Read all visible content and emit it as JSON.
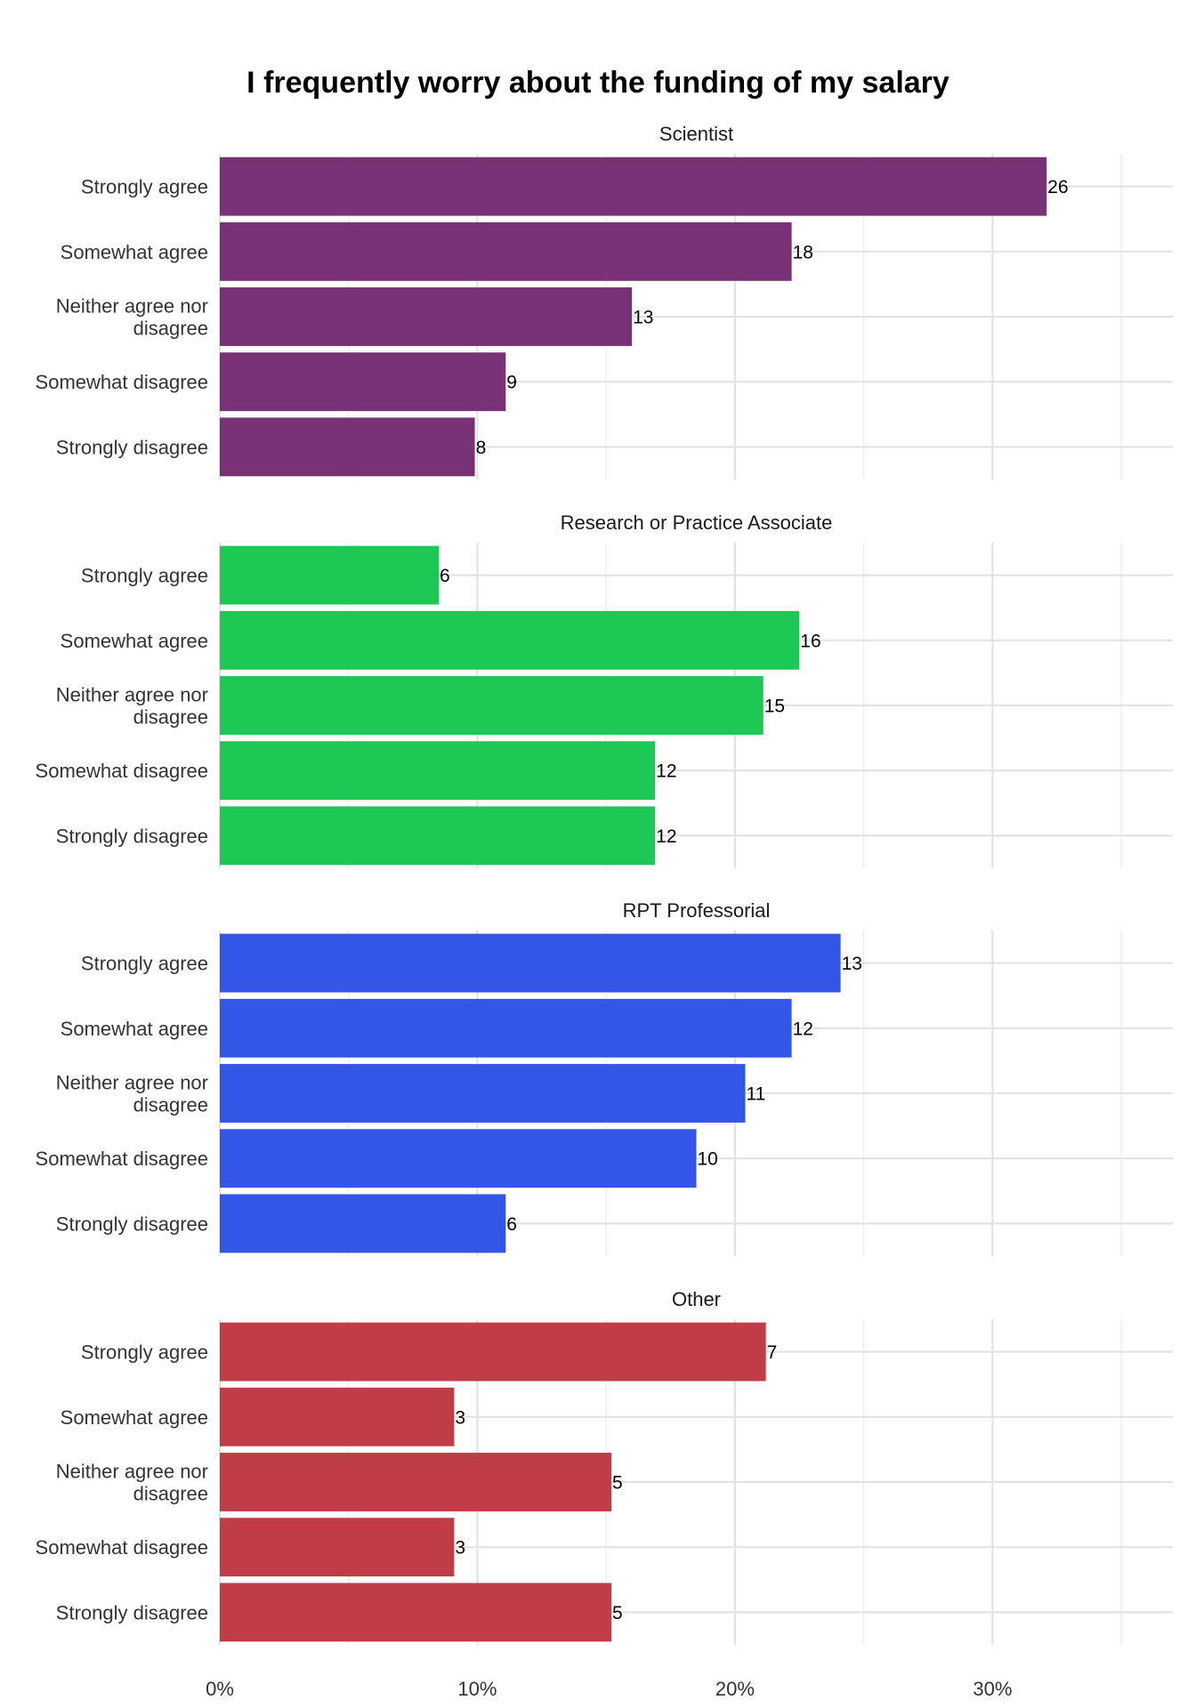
{
  "chart_data": {
    "type": "bar",
    "orientation": "horizontal",
    "title": "I frequently worry about the funding of my salary",
    "categories": [
      "Strongly agree",
      "Somewhat agree",
      "Neither agree nor disagree",
      "Somewhat disagree",
      "Strongly disagree"
    ],
    "category_lines": [
      [
        "Strongly agree"
      ],
      [
        "Somewhat agree"
      ],
      [
        "Neither agree nor",
        "disagree"
      ],
      [
        "Somewhat disagree"
      ],
      [
        "Strongly disagree"
      ]
    ],
    "xlim": [
      0,
      37
    ],
    "x_ticks": [
      0,
      10,
      20,
      30
    ],
    "x_tick_labels": [
      "0%",
      "10%",
      "20%",
      "30%"
    ],
    "grid": true,
    "legend": "none",
    "panels": [
      {
        "name": "Scientist",
        "color": "#773174",
        "counts": [
          26,
          18,
          13,
          9,
          8
        ],
        "percent": [
          32.1,
          22.2,
          16.0,
          11.1,
          9.9
        ]
      },
      {
        "name": "Research or Practice Associate",
        "color": "#1dc754",
        "counts": [
          6,
          16,
          15,
          12,
          12
        ],
        "percent": [
          8.5,
          22.5,
          21.1,
          16.9,
          16.9
        ]
      },
      {
        "name": "RPT Professorial",
        "color": "#3456e6",
        "counts": [
          13,
          12,
          11,
          10,
          6
        ],
        "percent": [
          24.1,
          22.2,
          20.4,
          18.5,
          11.1
        ]
      },
      {
        "name": "Other",
        "color": "#bf3e45",
        "counts": [
          7,
          3,
          5,
          3,
          5
        ],
        "percent": [
          21.2,
          9.1,
          15.2,
          9.1,
          15.2
        ]
      }
    ]
  }
}
